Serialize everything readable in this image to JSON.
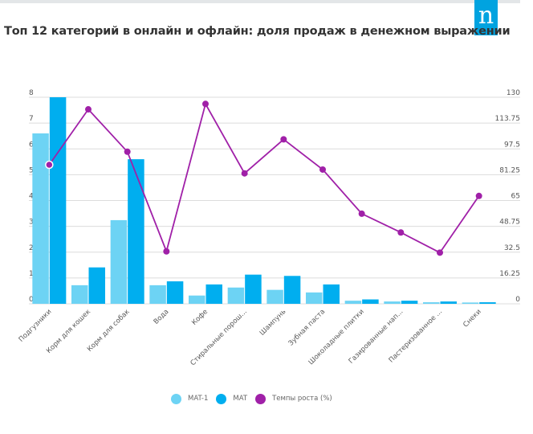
{
  "header": {
    "title": "Топ 12 категорий в онлайн и офлайн: доля продаж в денежном выражении",
    "logo_text": "n",
    "logo_icon": "nielsen-logo-icon"
  },
  "colors": {
    "mat1": "#6dd3f4",
    "mat": "#00aeef",
    "growth": "#a020a8",
    "grid": "#dcdcdc",
    "axis_text": "#555555",
    "logo": "#00a3e0"
  },
  "chart_data": {
    "type": "bar",
    "title": "Топ 12 категорий в онлайн и офлайн: доля продаж в денежном выражении",
    "xlabel": "",
    "ylabel": "",
    "categories": [
      "Подгузники",
      "Корм для кошек",
      "Корм для собак",
      "Вода",
      "Кофе",
      "Стиральные порош...",
      "Шампунь",
      "Зубная паста",
      "Шоколадные плитки",
      "Газированные нап...",
      "Пастеризованное ...",
      "Снеки"
    ],
    "series": [
      {
        "name": "MAT-1",
        "type": "bar",
        "axis": "left",
        "values": [
          6.6,
          0.72,
          3.24,
          0.72,
          0.32,
          0.63,
          0.54,
          0.44,
          0.12,
          0.09,
          0.06,
          0.05
        ]
      },
      {
        "name": "MAT",
        "type": "bar",
        "axis": "left",
        "values": [
          8.0,
          1.41,
          5.6,
          0.87,
          0.75,
          1.13,
          1.08,
          0.75,
          0.17,
          0.12,
          0.09,
          0.06
        ]
      },
      {
        "name": "Темпы роста (%)",
        "type": "line",
        "axis": "right",
        "values": [
          87.5,
          122.4,
          95.7,
          33.0,
          125.8,
          82.1,
          103.5,
          84.5,
          56.7,
          44.9,
          32.2,
          67.9
        ]
      }
    ],
    "ylim": [
      0,
      8
    ],
    "y_ticks": [
      "0",
      "1",
      "2",
      "3",
      "4",
      "5",
      "6",
      "7",
      "8"
    ],
    "y2lim": [
      0,
      130
    ],
    "y2_ticks": [
      "0",
      "16.25",
      "32.5",
      "48.75",
      "65",
      "81.25",
      "97.5",
      "113.75",
      "130"
    ],
    "grid": true,
    "legend": {
      "position": "bottom-center",
      "items": [
        {
          "label": "MAT-1",
          "color": "#6dd3f4"
        },
        {
          "label": "MAT",
          "color": "#00aeef"
        },
        {
          "label": "Темпы роста (%)",
          "color": "#a020a8"
        }
      ]
    }
  }
}
